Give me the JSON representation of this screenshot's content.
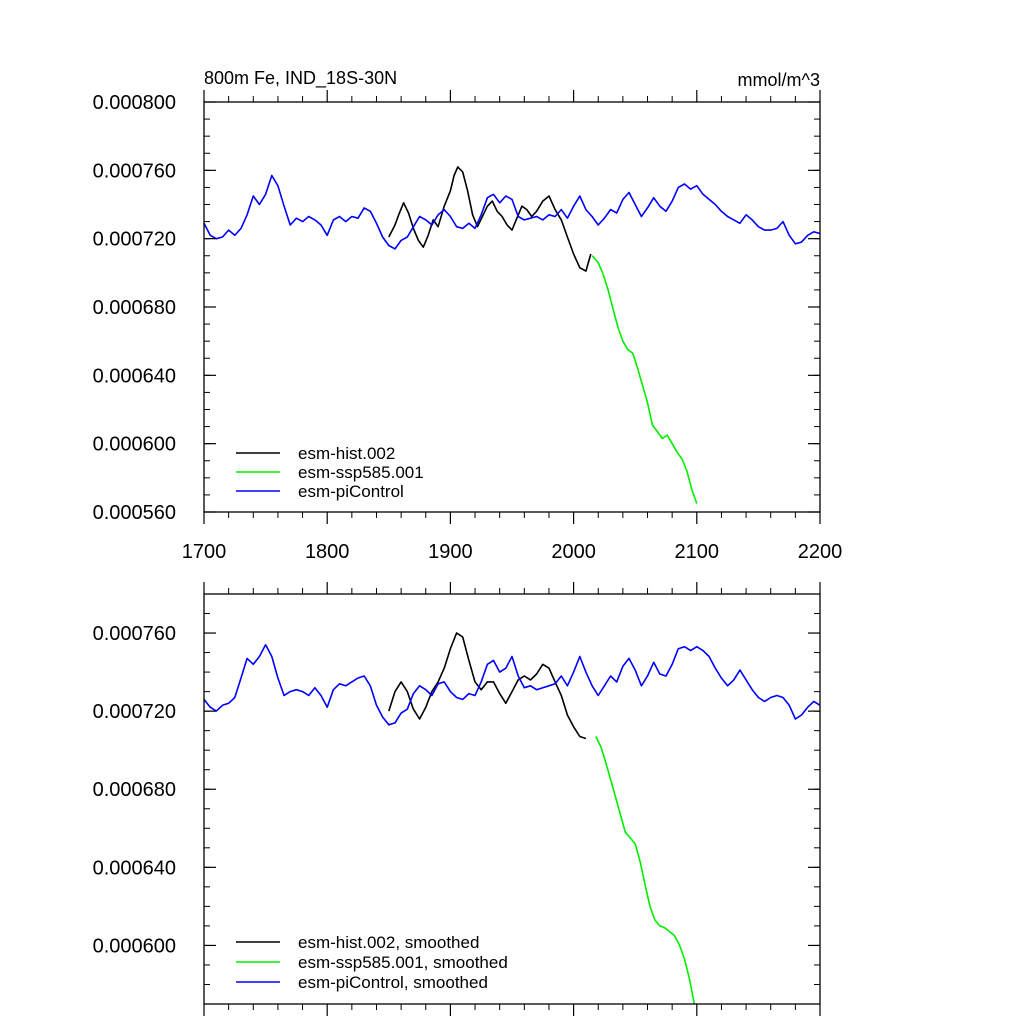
{
  "chart_data": [
    {
      "type": "line",
      "title_left": "800m Fe, IND_18S-30N",
      "title_right": "mmol/m^3",
      "xlim": [
        1700,
        2200
      ],
      "ylim": [
        0.00056,
        0.0008
      ],
      "x_ticks": [
        1700,
        1800,
        1900,
        2000,
        2100,
        2200
      ],
      "x_tick_labels": [
        "1700",
        "1800",
        "1900",
        "2000",
        "2100",
        "2200"
      ],
      "y_ticks": [
        0.00056,
        0.0006,
        0.00064,
        0.00068,
        0.00072,
        0.00076,
        0.0008
      ],
      "y_tick_labels": [
        "0.000560",
        "0.000600",
        "0.000640",
        "0.000680",
        "0.000720",
        "0.000760",
        "0.000800"
      ],
      "legend_position": "bottom-left",
      "series": [
        {
          "name": "esm-hist.002",
          "color": "#000000",
          "x": [
            1850,
            1855,
            1858,
            1862,
            1866,
            1870,
            1874,
            1878,
            1882,
            1886,
            1890,
            1895,
            1900,
            1903,
            1906,
            1910,
            1914,
            1918,
            1922,
            1926,
            1930,
            1934,
            1938,
            1942,
            1946,
            1950,
            1954,
            1958,
            1962,
            1966,
            1970,
            1975,
            1980,
            1985,
            1990,
            1995,
            2000,
            2005,
            2010,
            2014
          ],
          "y": [
            0.000721,
            0.000728,
            0.000734,
            0.000741,
            0.000735,
            0.000726,
            0.000719,
            0.000715,
            0.000722,
            0.000731,
            0.000727,
            0.000739,
            0.000748,
            0.000757,
            0.000762,
            0.000759,
            0.000748,
            0.000734,
            0.000727,
            0.000733,
            0.000739,
            0.000742,
            0.000736,
            0.000733,
            0.000728,
            0.000725,
            0.000732,
            0.000739,
            0.000737,
            0.000733,
            0.000736,
            0.000742,
            0.000745,
            0.000737,
            0.000731,
            0.000721,
            0.000711,
            0.000703,
            0.000701,
            0.000711
          ]
        },
        {
          "name": "esm-ssp585.001",
          "color": "#00ee00",
          "x": [
            2015,
            2020,
            2024,
            2028,
            2032,
            2036,
            2040,
            2044,
            2048,
            2052,
            2056,
            2060,
            2064,
            2068,
            2072,
            2076,
            2080,
            2084,
            2088,
            2092,
            2096,
            2100
          ],
          "y": [
            0.00071,
            0.000706,
            0.000699,
            0.00069,
            0.000679,
            0.000668,
            0.00066,
            0.000655,
            0.000653,
            0.000644,
            0.000634,
            0.000624,
            0.000611,
            0.000607,
            0.000603,
            0.000605,
            0.0006,
            0.000595,
            0.000591,
            0.000584,
            0.000573,
            0.000565
          ]
        },
        {
          "name": "esm-piControl",
          "color": "#0000ff",
          "x": [
            1700,
            1705,
            1710,
            1715,
            1720,
            1725,
            1730,
            1735,
            1740,
            1745,
            1750,
            1755,
            1760,
            1765,
            1770,
            1775,
            1780,
            1785,
            1790,
            1795,
            1800,
            1805,
            1810,
            1815,
            1820,
            1825,
            1830,
            1835,
            1840,
            1845,
            1850,
            1855,
            1860,
            1865,
            1870,
            1875,
            1880,
            1885,
            1890,
            1895,
            1900,
            1905,
            1910,
            1915,
            1920,
            1925,
            1930,
            1935,
            1940,
            1945,
            1950,
            1955,
            1960,
            1965,
            1970,
            1975,
            1980,
            1985,
            1990,
            1995,
            2000,
            2005,
            2010,
            2015,
            2020,
            2025,
            2030,
            2035,
            2040,
            2045,
            2050,
            2055,
            2060,
            2065,
            2070,
            2075,
            2080,
            2085,
            2090,
            2095,
            2100,
            2105,
            2110,
            2115,
            2120,
            2125,
            2130,
            2135,
            2140,
            2145,
            2150,
            2155,
            2160,
            2165,
            2170,
            2175,
            2180,
            2185,
            2190,
            2195,
            2200
          ],
          "y": [
            0.000729,
            0.000722,
            0.00072,
            0.000721,
            0.000725,
            0.000722,
            0.000726,
            0.000734,
            0.000745,
            0.00074,
            0.000746,
            0.000757,
            0.000751,
            0.000739,
            0.000728,
            0.000732,
            0.00073,
            0.000733,
            0.000731,
            0.000728,
            0.000722,
            0.000731,
            0.000733,
            0.00073,
            0.000733,
            0.000732,
            0.000738,
            0.000736,
            0.000729,
            0.000721,
            0.000716,
            0.000714,
            0.000719,
            0.000721,
            0.000727,
            0.000733,
            0.000731,
            0.000728,
            0.000734,
            0.000737,
            0.000733,
            0.000727,
            0.000726,
            0.000729,
            0.000726,
            0.000734,
            0.000744,
            0.000746,
            0.000741,
            0.000745,
            0.000743,
            0.000733,
            0.000731,
            0.000732,
            0.000733,
            0.000731,
            0.000734,
            0.000733,
            0.000737,
            0.000732,
            0.000739,
            0.000745,
            0.000737,
            0.000733,
            0.000728,
            0.000732,
            0.000737,
            0.000735,
            0.000743,
            0.000747,
            0.00074,
            0.000733,
            0.000738,
            0.000744,
            0.000739,
            0.000736,
            0.000742,
            0.00075,
            0.000752,
            0.000749,
            0.000751,
            0.000746,
            0.000743,
            0.00074,
            0.000736,
            0.000733,
            0.000731,
            0.000729,
            0.000734,
            0.000731,
            0.000727,
            0.000725,
            0.000725,
            0.000726,
            0.00073,
            0.000722,
            0.000717,
            0.000718,
            0.000722,
            0.000724,
            0.000723
          ]
        }
      ]
    },
    {
      "type": "line",
      "xlim": [
        1700,
        2200
      ],
      "ylim": [
        0.00057,
        0.00078
      ],
      "x_ticks": [
        1700,
        1800,
        1900,
        2000,
        2100,
        2200
      ],
      "y_ticks": [
        0.0006,
        0.00064,
        0.00068,
        0.00072,
        0.00076
      ],
      "y_tick_labels": [
        "0.000600",
        "0.000640",
        "0.000680",
        "0.000720",
        "0.000760"
      ],
      "legend_position": "bottom-left",
      "series": [
        {
          "name": "esm-hist.002, smoothed",
          "color": "#000000",
          "x": [
            1850,
            1855,
            1860,
            1865,
            1870,
            1875,
            1880,
            1885,
            1890,
            1895,
            1900,
            1905,
            1910,
            1915,
            1920,
            1925,
            1930,
            1935,
            1940,
            1945,
            1950,
            1955,
            1960,
            1965,
            1970,
            1975,
            1980,
            1985,
            1990,
            1995,
            2000,
            2005,
            2010
          ],
          "y": [
            0.00072,
            0.00073,
            0.000735,
            0.00073,
            0.000721,
            0.000716,
            0.000722,
            0.00073,
            0.000735,
            0.000742,
            0.000752,
            0.00076,
            0.000758,
            0.000746,
            0.000735,
            0.000731,
            0.000735,
            0.000735,
            0.000729,
            0.000724,
            0.00073,
            0.000736,
            0.000738,
            0.000736,
            0.000739,
            0.000744,
            0.000742,
            0.000735,
            0.000728,
            0.000718,
            0.000712,
            0.000707,
            0.000706
          ]
        },
        {
          "name": "esm-ssp585.001, smoothed",
          "color": "#00ee00",
          "x": [
            2018,
            2022,
            2026,
            2030,
            2034,
            2038,
            2042,
            2046,
            2050,
            2054,
            2058,
            2062,
            2066,
            2070,
            2074,
            2078,
            2082,
            2086,
            2090,
            2094,
            2098
          ],
          "y": [
            0.000707,
            0.000702,
            0.000694,
            0.000685,
            0.000676,
            0.000667,
            0.000658,
            0.000655,
            0.000652,
            0.000643,
            0.000631,
            0.00062,
            0.000613,
            0.00061,
            0.000609,
            0.000607,
            0.000605,
            0.0006,
            0.000593,
            0.000583,
            0.00057
          ]
        },
        {
          "name": "esm-piControl, smoothed",
          "color": "#0000ff",
          "x": [
            1700,
            1705,
            1710,
            1715,
            1720,
            1725,
            1730,
            1735,
            1740,
            1745,
            1750,
            1755,
            1760,
            1765,
            1770,
            1775,
            1780,
            1785,
            1790,
            1795,
            1800,
            1805,
            1810,
            1815,
            1820,
            1825,
            1830,
            1835,
            1840,
            1845,
            1850,
            1855,
            1860,
            1865,
            1870,
            1875,
            1880,
            1885,
            1890,
            1895,
            1900,
            1905,
            1910,
            1915,
            1920,
            1925,
            1930,
            1935,
            1940,
            1945,
            1950,
            1955,
            1960,
            1965,
            1970,
            1975,
            1980,
            1985,
            1990,
            1995,
            2000,
            2005,
            2010,
            2015,
            2020,
            2025,
            2030,
            2035,
            2040,
            2045,
            2050,
            2055,
            2060,
            2065,
            2070,
            2075,
            2080,
            2085,
            2090,
            2095,
            2100,
            2105,
            2110,
            2115,
            2120,
            2125,
            2130,
            2135,
            2140,
            2145,
            2150,
            2155,
            2160,
            2165,
            2170,
            2175,
            2180,
            2185,
            2190,
            2195,
            2200
          ],
          "y": [
            0.000726,
            0.000722,
            0.00072,
            0.000723,
            0.000724,
            0.000727,
            0.000737,
            0.000747,
            0.000744,
            0.000748,
            0.000754,
            0.000748,
            0.000737,
            0.000728,
            0.00073,
            0.000731,
            0.00073,
            0.000728,
            0.000732,
            0.000728,
            0.000722,
            0.000731,
            0.000734,
            0.000733,
            0.000735,
            0.000737,
            0.000738,
            0.000733,
            0.000723,
            0.000717,
            0.000713,
            0.000714,
            0.000719,
            0.000721,
            0.000729,
            0.000733,
            0.000731,
            0.000728,
            0.000734,
            0.000735,
            0.00073,
            0.000727,
            0.000726,
            0.000729,
            0.000728,
            0.000735,
            0.000744,
            0.000746,
            0.00074,
            0.000742,
            0.000748,
            0.000738,
            0.000732,
            0.000733,
            0.000731,
            0.000732,
            0.000733,
            0.000734,
            0.000738,
            0.000733,
            0.00074,
            0.000748,
            0.00074,
            0.000733,
            0.000728,
            0.000733,
            0.000738,
            0.000735,
            0.000743,
            0.000747,
            0.000741,
            0.000733,
            0.000738,
            0.000745,
            0.000739,
            0.000738,
            0.000744,
            0.000752,
            0.000753,
            0.000751,
            0.000753,
            0.000751,
            0.000748,
            0.000742,
            0.000737,
            0.000733,
            0.000736,
            0.000741,
            0.000736,
            0.000731,
            0.000727,
            0.000725,
            0.000727,
            0.000728,
            0.000727,
            0.000723,
            0.000716,
            0.000718,
            0.000722,
            0.000725,
            0.000723
          ]
        }
      ]
    }
  ]
}
